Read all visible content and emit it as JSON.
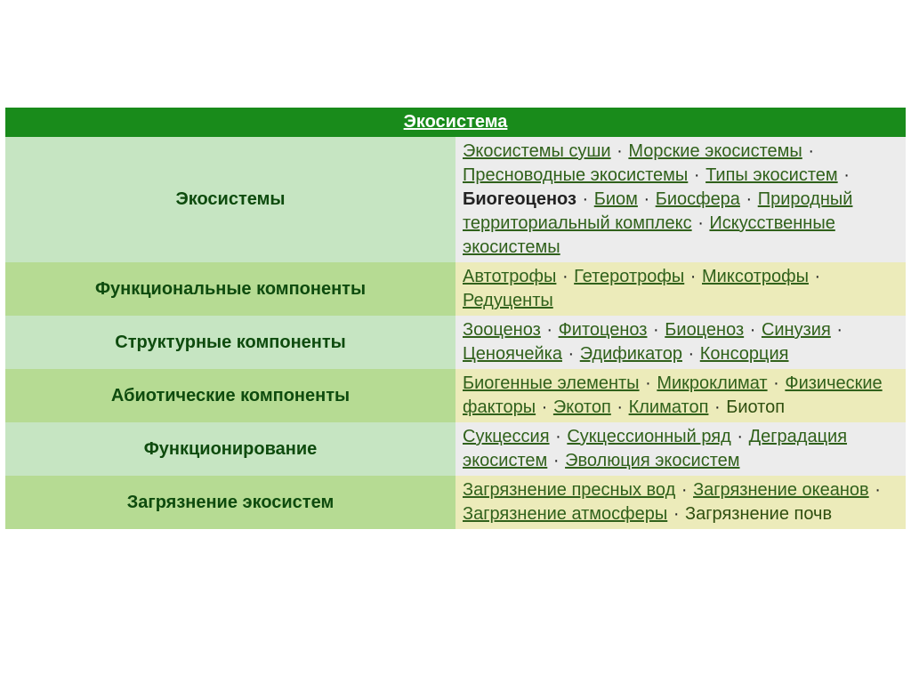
{
  "colors": {
    "title_bg": "#198b1b",
    "title_text": "#ffffff",
    "label_text": "#0e4b0e",
    "link_text": "#30611b",
    "odd_label_bg": "#c6e5c2",
    "odd_content_bg": "#ececec",
    "even_label_bg": "#b6db93",
    "even_content_bg": "#ecebba"
  },
  "title": "Экосистема",
  "sep": " · ",
  "rows": [
    {
      "label": "Экосистемы",
      "items": [
        {
          "t": "Экосистемы суши",
          "link": true
        },
        {
          "t": "Морские экосистемы",
          "link": true
        },
        {
          "t": "Пресноводные экосистемы",
          "link": true
        },
        {
          "t": "Типы экосистем",
          "link": true
        },
        {
          "t": "Биогеоценоз",
          "bold": true
        },
        {
          "t": "Биом",
          "link": true
        },
        {
          "t": "Биосфера",
          "link": true
        },
        {
          "t": "Природный территориальный комплекс",
          "link": true
        },
        {
          "t": "Искусственные экосистемы",
          "link": true
        }
      ]
    },
    {
      "label": "Функциональные компоненты",
      "items": [
        {
          "t": "Автотрофы",
          "link": true
        },
        {
          "t": "Гетеротрофы",
          "link": true
        },
        {
          "t": "Миксотрофы",
          "link": true
        },
        {
          "t": "Редуценты",
          "link": true
        }
      ]
    },
    {
      "label": "Структурные компоненты",
      "items": [
        {
          "t": "Зооценоз",
          "link": true
        },
        {
          "t": "Фитоценоз",
          "link": true
        },
        {
          "t": "Биоценоз",
          "link": true
        },
        {
          "t": "Синузия",
          "link": true
        },
        {
          "t": "Ценоячейка",
          "link": true
        },
        {
          "t": "Эдификатор",
          "link": true
        },
        {
          "t": "Консорция",
          "link": true
        }
      ]
    },
    {
      "label": "Абиотические компоненты",
      "items": [
        {
          "t": "Биогенные элементы",
          "link": true
        },
        {
          "t": "Микроклимат",
          "link": true
        },
        {
          "t": "Физические факторы",
          "link": true
        },
        {
          "t": "Экотоп",
          "link": true
        },
        {
          "t": "Климатоп",
          "link": true
        },
        {
          "t": "Биотоп"
        }
      ]
    },
    {
      "label": "Функционирование",
      "items": [
        {
          "t": "Сукцессия",
          "link": true
        },
        {
          "t": "Сукцессионный ряд",
          "link": true
        },
        {
          "t": "Деградация экосистем",
          "link": true
        },
        {
          "t": "Эволюция экосистем",
          "link": true
        }
      ]
    },
    {
      "label": "Загрязнение экосистем",
      "items": [
        {
          "t": "Загрязнение пресных вод",
          "link": true
        },
        {
          "t": "Загрязнение океанов",
          "link": true
        },
        {
          "t": "Загрязнение атмосферы",
          "link": true
        },
        {
          "t": "Загрязнение почв"
        }
      ]
    }
  ]
}
